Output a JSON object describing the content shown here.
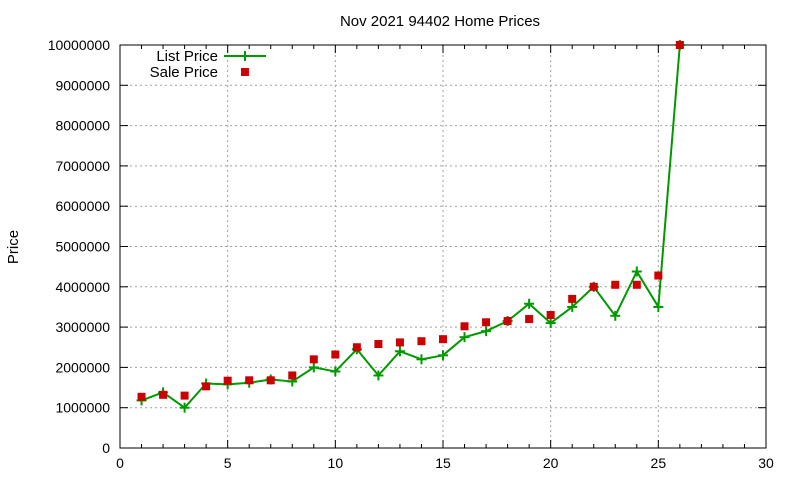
{
  "chart_data": {
    "type": "line",
    "title": "Nov 2021 94402 Home Prices",
    "xlabel": "",
    "ylabel": "Price",
    "xlim": [
      0,
      30
    ],
    "ylim": [
      0,
      10000000
    ],
    "x_ticks": [
      "0",
      "5",
      "10",
      "15",
      "20",
      "25",
      "30"
    ],
    "y_ticks": [
      "0",
      "1000000",
      "2000000",
      "3000000",
      "4000000",
      "5000000",
      "6000000",
      "7000000",
      "8000000",
      "9000000",
      "10000000"
    ],
    "grid": true,
    "legend_position": "top-left",
    "series": [
      {
        "name": "List Price",
        "style": "line+cross",
        "color": "#009900",
        "x": [
          1,
          2,
          3,
          4,
          5,
          6,
          7,
          8,
          9,
          10,
          11,
          12,
          13,
          14,
          15,
          16,
          17,
          18,
          19,
          20,
          21,
          22,
          23,
          24,
          25,
          26
        ],
        "values": [
          1180000,
          1380000,
          1000000,
          1600000,
          1580000,
          1620000,
          1700000,
          1650000,
          2000000,
          1900000,
          2450000,
          1800000,
          2400000,
          2200000,
          2300000,
          2750000,
          2900000,
          3150000,
          3580000,
          3100000,
          3500000,
          4000000,
          3280000,
          4380000,
          3500000,
          10000000
        ]
      },
      {
        "name": "Sale Price",
        "style": "square",
        "color": "#cc0000",
        "x": [
          1,
          2,
          3,
          4,
          5,
          6,
          7,
          8,
          9,
          10,
          11,
          12,
          13,
          14,
          15,
          16,
          17,
          18,
          19,
          20,
          21,
          22,
          23,
          24,
          25,
          26
        ],
        "values": [
          1270000,
          1320000,
          1300000,
          1530000,
          1670000,
          1680000,
          1680000,
          1800000,
          2200000,
          2320000,
          2500000,
          2580000,
          2620000,
          2650000,
          2700000,
          3020000,
          3120000,
          3150000,
          3200000,
          3300000,
          3700000,
          4000000,
          4050000,
          4050000,
          4280000,
          10000000
        ]
      }
    ]
  }
}
